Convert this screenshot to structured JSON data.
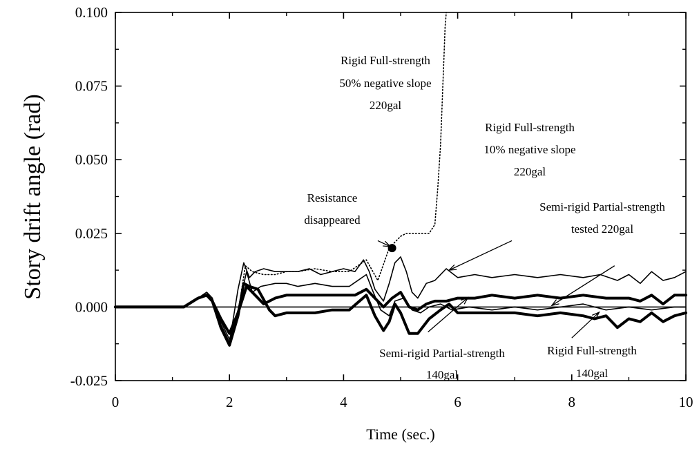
{
  "chart_data": {
    "type": "line",
    "title": "",
    "xlabel": "Time (sec.)",
    "ylabel": "Story drift angle (rad)",
    "xlim": [
      0,
      10
    ],
    "ylim": [
      -0.025,
      0.1
    ],
    "x_ticks": [
      "0",
      "2",
      "4",
      "6",
      "8",
      "10"
    ],
    "y_ticks": [
      "-0.025",
      "0.000",
      "0.025",
      "0.050",
      "0.075",
      "0.100"
    ],
    "grid": false,
    "legend": "none",
    "series": [
      {
        "id": "rfs50",
        "style": "dotted",
        "width": 1.6,
        "color": "#000000",
        "x": [
          0,
          1.2,
          1.45,
          1.6,
          1.7,
          1.85,
          2.0,
          2.15,
          2.28,
          2.4,
          2.6,
          2.8,
          3.0,
          3.2,
          3.5,
          3.8,
          4.1,
          4.4,
          4.6,
          4.8,
          4.9,
          5.0,
          5.1,
          5.2,
          5.5,
          5.6,
          5.65,
          5.7,
          5.72,
          5.74,
          5.76,
          5.78,
          5.8
        ],
        "values": [
          0,
          0,
          0.003,
          0.005,
          0.003,
          -0.006,
          -0.012,
          -0.002,
          0.014,
          0.012,
          0.011,
          0.011,
          0.012,
          0.012,
          0.013,
          0.012,
          0.012,
          0.016,
          0.009,
          0.02,
          0.022,
          0.024,
          0.025,
          0.025,
          0.025,
          0.028,
          0.04,
          0.055,
          0.065,
          0.075,
          0.085,
          0.095,
          0.1
        ]
      },
      {
        "id": "rfs10",
        "style": "solid",
        "width": 1.6,
        "color": "#000000",
        "x": [
          0,
          1.2,
          1.45,
          1.6,
          1.7,
          1.85,
          2.0,
          2.15,
          2.25,
          2.35,
          2.45,
          2.6,
          2.8,
          3.0,
          3.2,
          3.4,
          3.6,
          3.8,
          4.0,
          4.2,
          4.35,
          4.45,
          4.55,
          4.7,
          4.8,
          4.9,
          5.0,
          5.1,
          5.2,
          5.3,
          5.45,
          5.6,
          5.8,
          6.0,
          6.3,
          6.6,
          7.0,
          7.4,
          7.8,
          8.2,
          8.5,
          8.8,
          9.0,
          9.2,
          9.4,
          9.6,
          9.8,
          10.0
        ],
        "values": [
          0,
          0,
          0.003,
          0.005,
          0.003,
          -0.006,
          -0.012,
          0.006,
          0.015,
          0.01,
          0.012,
          0.013,
          0.012,
          0.012,
          0.012,
          0.013,
          0.011,
          0.012,
          0.013,
          0.012,
          0.016,
          0.012,
          0.006,
          0.002,
          0.008,
          0.015,
          0.017,
          0.012,
          0.005,
          0.003,
          0.008,
          0.009,
          0.013,
          0.01,
          0.011,
          0.01,
          0.011,
          0.01,
          0.011,
          0.01,
          0.011,
          0.009,
          0.011,
          0.008,
          0.012,
          0.009,
          0.01,
          0.012
        ]
      },
      {
        "id": "srps220",
        "style": "solid",
        "width": 1.6,
        "color": "#000000",
        "x": [
          0,
          1.2,
          1.45,
          1.6,
          1.7,
          1.85,
          2.0,
          2.15,
          2.3,
          2.4,
          2.55,
          2.8,
          3.0,
          3.2,
          3.5,
          3.8,
          4.1,
          4.4,
          4.5,
          4.65,
          4.8,
          4.9,
          5.05,
          5.2,
          5.35,
          5.5,
          5.7,
          5.9,
          6.2,
          6.6,
          7.0,
          7.4,
          7.8,
          8.2,
          8.6,
          9.0,
          9.4,
          9.8,
          10.0
        ],
        "values": [
          0,
          0,
          0.003,
          0.005,
          0.002,
          -0.005,
          -0.011,
          -0.001,
          0.012,
          0.005,
          0.007,
          0.008,
          0.008,
          0.007,
          0.008,
          0.007,
          0.007,
          0.011,
          0.006,
          -0.001,
          -0.003,
          0.002,
          0.003,
          -0.001,
          -0.002,
          0.0,
          0.001,
          -0.001,
          0.0,
          -0.001,
          0.0,
          -0.001,
          0.0,
          0.001,
          -0.001,
          0.0,
          -0.001,
          0.0,
          0.0
        ]
      },
      {
        "id": "srps140",
        "style": "solid",
        "width": 4,
        "color": "#000000",
        "x": [
          0,
          1.2,
          1.45,
          1.6,
          1.7,
          1.85,
          2.0,
          2.15,
          2.3,
          2.45,
          2.6,
          2.8,
          3.0,
          3.3,
          3.6,
          3.9,
          4.2,
          4.4,
          4.55,
          4.7,
          4.85,
          5.0,
          5.15,
          5.3,
          5.45,
          5.6,
          5.8,
          6.0,
          6.3,
          6.6,
          7.0,
          7.4,
          7.8,
          8.2,
          8.6,
          9.0,
          9.2,
          9.4,
          9.6,
          9.8,
          10.0
        ],
        "values": [
          0,
          0,
          0.003,
          0.004,
          0.002,
          -0.004,
          -0.009,
          -0.002,
          0.007,
          0.004,
          0.001,
          0.003,
          0.004,
          0.004,
          0.004,
          0.004,
          0.004,
          0.006,
          0.003,
          0.0,
          0.003,
          0.005,
          0.0,
          -0.001,
          0.001,
          0.002,
          0.002,
          0.003,
          0.003,
          0.004,
          0.003,
          0.004,
          0.003,
          0.004,
          0.003,
          0.003,
          0.002,
          0.004,
          0.001,
          0.004,
          0.004
        ]
      },
      {
        "id": "rfs140",
        "style": "solid",
        "width": 4,
        "color": "#000000",
        "x": [
          0,
          1.2,
          1.45,
          1.6,
          1.7,
          1.85,
          2.0,
          2.15,
          2.25,
          2.35,
          2.5,
          2.7,
          2.8,
          3.0,
          3.2,
          3.5,
          3.8,
          4.1,
          4.4,
          4.55,
          4.7,
          4.8,
          4.9,
          5.0,
          5.15,
          5.3,
          5.5,
          5.7,
          5.85,
          6.0,
          6.3,
          6.6,
          7.0,
          7.4,
          7.8,
          8.2,
          8.4,
          8.6,
          8.8,
          9.0,
          9.2,
          9.4,
          9.6,
          9.8,
          10.0
        ],
        "values": [
          0,
          0,
          0.003,
          0.004,
          0.002,
          -0.007,
          -0.013,
          -0.003,
          0.008,
          0.007,
          0.006,
          -0.001,
          -0.003,
          -0.002,
          -0.002,
          -0.002,
          -0.001,
          -0.001,
          0.004,
          -0.003,
          -0.008,
          -0.005,
          0.001,
          -0.002,
          -0.009,
          -0.009,
          -0.004,
          -0.001,
          0.001,
          -0.002,
          -0.002,
          -0.002,
          -0.002,
          -0.003,
          -0.002,
          -0.003,
          -0.004,
          -0.003,
          -0.007,
          -0.004,
          -0.005,
          -0.002,
          -0.005,
          -0.003,
          -0.002
        ]
      }
    ],
    "marker": {
      "x": 4.85,
      "y": 0.02,
      "label": "filled-circle"
    },
    "annotations": [
      {
        "lines": [
          "Rigid Full-strength",
          "50% negative slope",
          "220gal"
        ],
        "align": [
          "middle",
          "middle",
          "middle"
        ]
      },
      {
        "lines": [
          "Rigid Full-strength",
          "10% negative slope",
          "220gal"
        ]
      },
      {
        "lines": [
          "Resistance",
          "disappeared"
        ]
      },
      {
        "lines": [
          "Semi-rigid Partial-strength",
          "tested 220gal"
        ]
      },
      {
        "lines": [
          "Semi-rigid Partial-strength",
          "140gal"
        ]
      },
      {
        "lines": [
          "Rigid Full-strength",
          "140gal"
        ]
      }
    ]
  }
}
